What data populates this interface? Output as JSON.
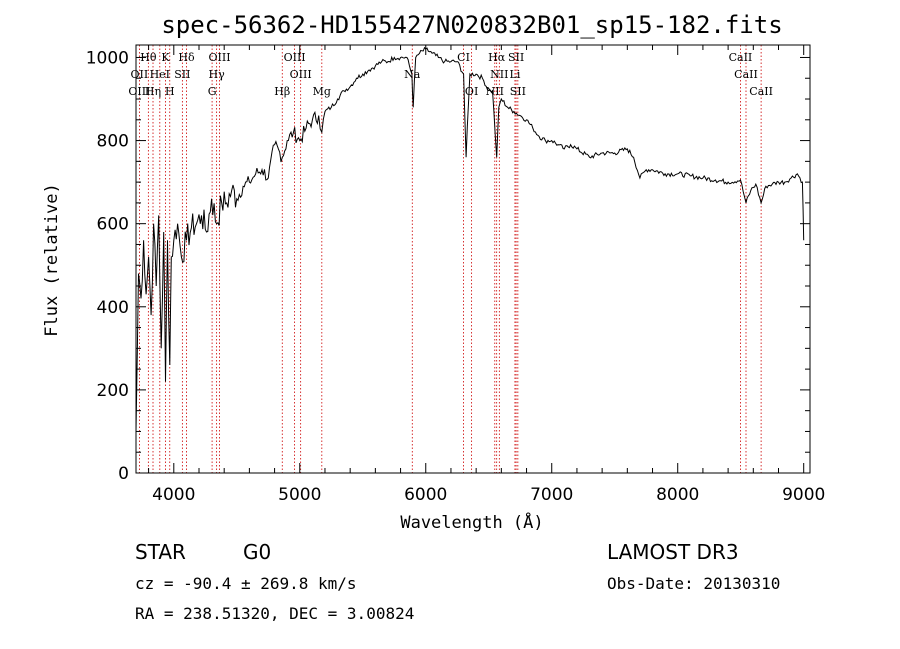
{
  "chart_data": {
    "type": "line",
    "title": "spec-56362-HD155427N020832B01_sp15-182.fits",
    "xlabel": "Wavelength (Å)",
    "ylabel": "Flux (relative)",
    "xlim": [
      3700,
      9050
    ],
    "ylim": [
      0,
      1030
    ],
    "xticks": [
      4000,
      5000,
      6000,
      7000,
      8000,
      9000
    ],
    "yticks": [
      0,
      200,
      400,
      600,
      800,
      1000
    ],
    "grid": false,
    "series": [
      {
        "color": "#000000",
        "x": [
          3700,
          3720,
          3740,
          3760,
          3780,
          3800,
          3820,
          3840,
          3860,
          3880,
          3900,
          3920,
          3934,
          3950,
          3968,
          3980,
          4000,
          4030,
          4060,
          4101,
          4140,
          4180,
          4220,
          4260,
          4300,
          4340,
          4380,
          4420,
          4460,
          4500,
          4550,
          4600,
          4650,
          4700,
          4750,
          4800,
          4861,
          4900,
          4950,
          5000,
          5050,
          5100,
          5150,
          5175,
          5200,
          5250,
          5300,
          5350,
          5400,
          5450,
          5500,
          5550,
          5600,
          5650,
          5700,
          5750,
          5800,
          5850,
          5890,
          5900,
          5920,
          5950,
          6000,
          6050,
          6100,
          6150,
          6200,
          6250,
          6300,
          6320,
          6350,
          6400,
          6450,
          6500,
          6530,
          6563,
          6580,
          6600,
          6650,
          6700,
          6750,
          6800,
          6850,
          6900,
          6950,
          7000,
          7050,
          7100,
          7150,
          7200,
          7300,
          7400,
          7500,
          7600,
          7650,
          7700,
          7750,
          7800,
          7900,
          8000,
          8100,
          8200,
          8300,
          8400,
          8498,
          8542,
          8580,
          8620,
          8662,
          8700,
          8750,
          8800,
          8850,
          8900,
          8950,
          8990,
          9000
        ],
        "y": [
          100,
          480,
          420,
          560,
          430,
          520,
          380,
          600,
          450,
          620,
          300,
          580,
          220,
          560,
          260,
          520,
          560,
          600,
          520,
          560,
          590,
          600,
          620,
          580,
          660,
          600,
          650,
          650,
          680,
          660,
          690,
          700,
          720,
          730,
          710,
          790,
          760,
          800,
          820,
          800,
          830,
          850,
          860,
          820,
          870,
          880,
          900,
          920,
          930,
          950,
          960,
          970,
          980,
          990,
          990,
          1000,
          1000,
          1000,
          960,
          880,
          1000,
          1010,
          1020,
          1010,
          1000,
          990,
          990,
          990,
          960,
          760,
          960,
          960,
          950,
          920,
          920,
          760,
          880,
          900,
          880,
          870,
          860,
          850,
          830,
          810,
          800,
          800,
          790,
          780,
          790,
          780,
          760,
          770,
          770,
          780,
          760,
          710,
          730,
          730,
          720,
          720,
          715,
          710,
          705,
          700,
          705,
          650,
          680,
          695,
          650,
          690,
          695,
          700,
          700,
          710,
          720,
          700,
          560
        ]
      }
    ],
    "annotations": [
      {
        "label": "Hθ",
        "x": 3798,
        "row": 0
      },
      {
        "label": "K",
        "x": 3934,
        "row": 0
      },
      {
        "label": "Hδ",
        "x": 4101,
        "row": 0
      },
      {
        "label": "OIII",
        "x": 4363,
        "row": 0
      },
      {
        "label": "OIII",
        "x": 4959,
        "row": 0
      },
      {
        "label": "CI",
        "x": 6300,
        "row": 0
      },
      {
        "label": "Hα",
        "x": 6563,
        "row": 0
      },
      {
        "label": "SII",
        "x": 6717,
        "row": 0
      },
      {
        "label": "CaII",
        "x": 8498,
        "row": 0
      },
      {
        "label": "OII",
        "x": 3727,
        "row": 1
      },
      {
        "label": "HeI",
        "x": 3889,
        "row": 1
      },
      {
        "label": "SII",
        "x": 4068,
        "row": 1
      },
      {
        "label": "Hγ",
        "x": 4340,
        "row": 1
      },
      {
        "label": "OIII",
        "x": 5007,
        "row": 1
      },
      {
        "label": "Na",
        "x": 5893,
        "row": 1
      },
      {
        "label": "NII",
        "x": 6584,
        "row": 1
      },
      {
        "label": "Li",
        "x": 6708,
        "row": 1
      },
      {
        "label": "CaII",
        "x": 8542,
        "row": 1
      },
      {
        "label": "OIII",
        "x": 3727,
        "row": 2
      },
      {
        "label": "Hη",
        "x": 3835,
        "row": 2
      },
      {
        "label": "H",
        "x": 3968,
        "row": 2
      },
      {
        "label": "G",
        "x": 4304,
        "row": 2
      },
      {
        "label": "Hβ",
        "x": 4861,
        "row": 2
      },
      {
        "label": "Mg",
        "x": 5175,
        "row": 2
      },
      {
        "label": "OI",
        "x": 6364,
        "row": 2
      },
      {
        "label": "NII",
        "x": 6548,
        "row": 2
      },
      {
        "label": "SII",
        "x": 6731,
        "row": 2
      },
      {
        "label": "CaII",
        "x": 8662,
        "row": 2
      }
    ],
    "vlines": [
      3727,
      3798,
      3835,
      3889,
      3934,
      3968,
      4068,
      4101,
      4304,
      4340,
      4363,
      4861,
      4959,
      5007,
      5175,
      5893,
      6300,
      6364,
      6548,
      6563,
      6584,
      6708,
      6717,
      6731,
      8498,
      8542,
      8662
    ],
    "vline_color": "#cc0000"
  },
  "info": {
    "object_class": "STAR",
    "subclass": "G0",
    "survey": "LAMOST DR3",
    "redshift": "cz = -90.4 ± 269.8 km/s",
    "obs_date": "Obs-Date: 20130310",
    "coords": "RA = 238.51320, DEC =   3.00824"
  }
}
